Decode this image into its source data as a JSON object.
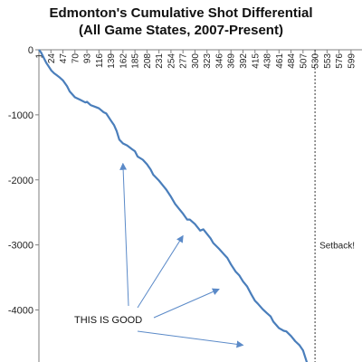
{
  "chart_data": {
    "type": "line",
    "title": "Edmonton's Cumulative Shot Differential",
    "subtitle": "(All Game States, 2007-Present)",
    "x_ticks": [
      "1",
      "24",
      "47",
      "70",
      "93",
      "116",
      "139",
      "162",
      "185",
      "208",
      "231",
      "254",
      "277",
      "300",
      "323",
      "346",
      "369",
      "392",
      "415",
      "438",
      "461",
      "484",
      "507",
      "530",
      "553",
      "576",
      "599"
    ],
    "y_ticks": [
      "0",
      "-1000",
      "-2000",
      "-3000",
      "-4000"
    ],
    "xlim": [
      1,
      620
    ],
    "ylim": [
      -4800,
      0
    ],
    "grid": false,
    "series": [
      {
        "color": "#4a7ebb",
        "x": [
          1,
          5,
          10,
          15,
          20,
          25,
          30,
          35,
          40,
          47,
          55,
          60,
          70,
          80,
          90,
          93,
          100,
          110,
          116,
          125,
          130,
          139,
          145,
          150,
          155,
          162,
          170,
          178,
          185,
          190,
          200,
          208,
          215,
          220,
          231,
          240,
          245,
          254,
          262,
          270,
          277,
          285,
          290,
          300,
          310,
          316,
          323,
          330,
          335,
          346,
          355,
          362,
          369,
          378,
          385,
          392,
          400,
          408,
          415,
          420,
          430,
          438,
          445,
          450,
          461,
          470,
          475,
          484,
          492,
          500,
          507,
          515
        ],
        "y": [
          0,
          -40,
          -120,
          -200,
          -260,
          -320,
          -360,
          -390,
          -420,
          -470,
          -560,
          -640,
          -730,
          -770,
          -810,
          -800,
          -850,
          -880,
          -900,
          -960,
          -980,
          -1090,
          -1160,
          -1250,
          -1380,
          -1440,
          -1470,
          -1520,
          -1560,
          -1640,
          -1690,
          -1760,
          -1840,
          -1920,
          -2010,
          -2100,
          -2150,
          -2260,
          -2370,
          -2450,
          -2520,
          -2610,
          -2610,
          -2680,
          -2780,
          -2760,
          -2830,
          -2900,
          -2970,
          -3060,
          -3140,
          -3200,
          -3300,
          -3410,
          -3470,
          -3560,
          -3640,
          -3760,
          -3860,
          -3900,
          -3990,
          -4050,
          -4100,
          -4180,
          -4280,
          -4320,
          -4330,
          -4400,
          -4480,
          -4540,
          -4620,
          -4820
        ]
      }
    ],
    "reference_line": {
      "x": 530,
      "style": "dashed",
      "label": "Setback!"
    },
    "annotation": {
      "text": "THIS IS GOOD",
      "arrow_targets": [
        {
          "x": 162,
          "y": -1750
        },
        {
          "x": 277,
          "y": -2860
        },
        {
          "x": 346,
          "y": -3680
        },
        {
          "x": 392,
          "y": -4540
        }
      ]
    }
  }
}
